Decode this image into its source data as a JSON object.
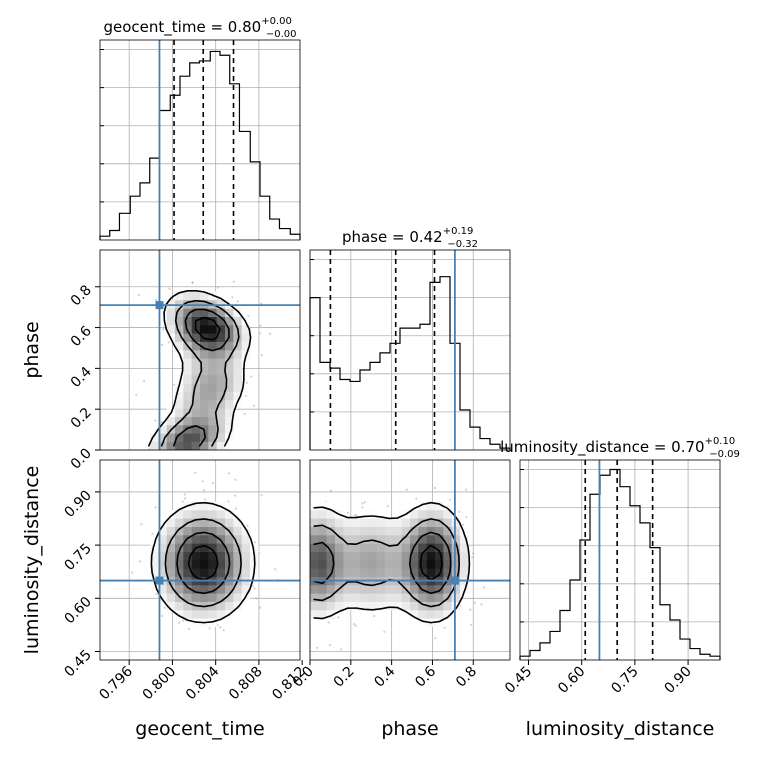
{
  "chart_data": {
    "type": "corner",
    "parameters": [
      "geocent_time",
      "phase",
      "luminosity_distance"
    ],
    "titles": [
      {
        "param": "geocent_time",
        "prefix": "geocent_time = ",
        "median": "0.80",
        "plus": "+0.00",
        "minus": "−0.00"
      },
      {
        "param": "phase",
        "prefix": "phase = ",
        "median": "0.42",
        "plus": "+0.19",
        "minus": "−0.32"
      },
      {
        "param": "luminosity_distance",
        "prefix": "luminosity_distance = ",
        "median": "0.70",
        "plus": "+0.10",
        "minus": "−0.09"
      }
    ],
    "ranges": {
      "geocent_time": [
        0.7933,
        0.8118
      ],
      "phase": [
        0.0,
        0.98
      ],
      "luminosity_distance": [
        0.426,
        0.99
      ]
    },
    "ticks": {
      "geocent_time": {
        "values": [
          0.796,
          0.8,
          0.804,
          0.808,
          0.812
        ],
        "labels": [
          "0.796",
          "0.800",
          "0.804",
          "0.808",
          "0.812"
        ]
      },
      "phase": {
        "values": [
          0.0,
          0.2,
          0.4,
          0.6,
          0.8
        ],
        "labels": [
          "0.0",
          "0.2",
          "0.4",
          "0.6",
          "0.8"
        ]
      },
      "luminosity_distance": {
        "values": [
          0.45,
          0.6,
          0.75,
          0.9
        ],
        "labels": [
          "0.45",
          "0.60",
          "0.75",
          "0.90"
        ]
      }
    },
    "truths": {
      "geocent_time": 0.7988,
      "phase": 0.71,
      "luminosity_distance": 0.65
    },
    "quantiles": {
      "geocent_time": [
        0.80015,
        0.80285,
        0.80565
      ],
      "phase": [
        0.1,
        0.42,
        0.61
      ],
      "luminosity_distance": [
        0.61,
        0.7,
        0.8
      ]
    },
    "histograms": {
      "geocent_time": {
        "edges": [
          0.7933,
          0.7942,
          0.7951,
          0.7961,
          0.797,
          0.7979,
          0.7988,
          0.7998,
          0.8007,
          0.8016,
          0.8025,
          0.8035,
          0.8044,
          0.8053,
          0.8062,
          0.8072,
          0.8081,
          0.809,
          0.8099,
          0.8109,
          0.8118
        ],
        "counts": [
          0.02,
          0.05,
          0.14,
          0.23,
          0.3,
          0.43,
          0.68,
          0.76,
          0.86,
          0.93,
          0.94,
          0.99,
          0.97,
          0.82,
          0.57,
          0.41,
          0.23,
          0.11,
          0.06,
          0.03
        ]
      },
      "phase": {
        "edges": [
          0.0,
          0.049,
          0.098,
          0.147,
          0.196,
          0.245,
          0.294,
          0.343,
          0.392,
          0.441,
          0.49,
          0.539,
          0.588,
          0.637,
          0.686,
          0.735,
          0.784,
          0.833,
          0.882,
          0.931,
          0.98
        ],
        "counts": [
          0.8,
          0.46,
          0.43,
          0.37,
          0.36,
          0.42,
          0.46,
          0.51,
          0.56,
          0.64,
          0.64,
          0.66,
          0.88,
          0.91,
          0.56,
          0.21,
          0.12,
          0.06,
          0.03,
          0.01
        ]
      },
      "luminosity_distance": {
        "edges": [
          0.426,
          0.4542,
          0.4824,
          0.5106,
          0.5388,
          0.567,
          0.5952,
          0.6234,
          0.6516,
          0.6798,
          0.708,
          0.7362,
          0.7644,
          0.7926,
          0.8208,
          0.849,
          0.8772,
          0.9054,
          0.9336,
          0.9618,
          0.99
        ],
        "counts": [
          0.02,
          0.05,
          0.09,
          0.15,
          0.26,
          0.42,
          0.63,
          0.87,
          0.97,
          1.0,
          0.91,
          0.81,
          0.72,
          0.59,
          0.29,
          0.21,
          0.11,
          0.06,
          0.03,
          0.02
        ]
      }
    },
    "grid": true,
    "axis_labels": {
      "geocent_time": "geocent_time",
      "phase": "phase",
      "luminosity_distance": "luminosity_distance"
    }
  }
}
